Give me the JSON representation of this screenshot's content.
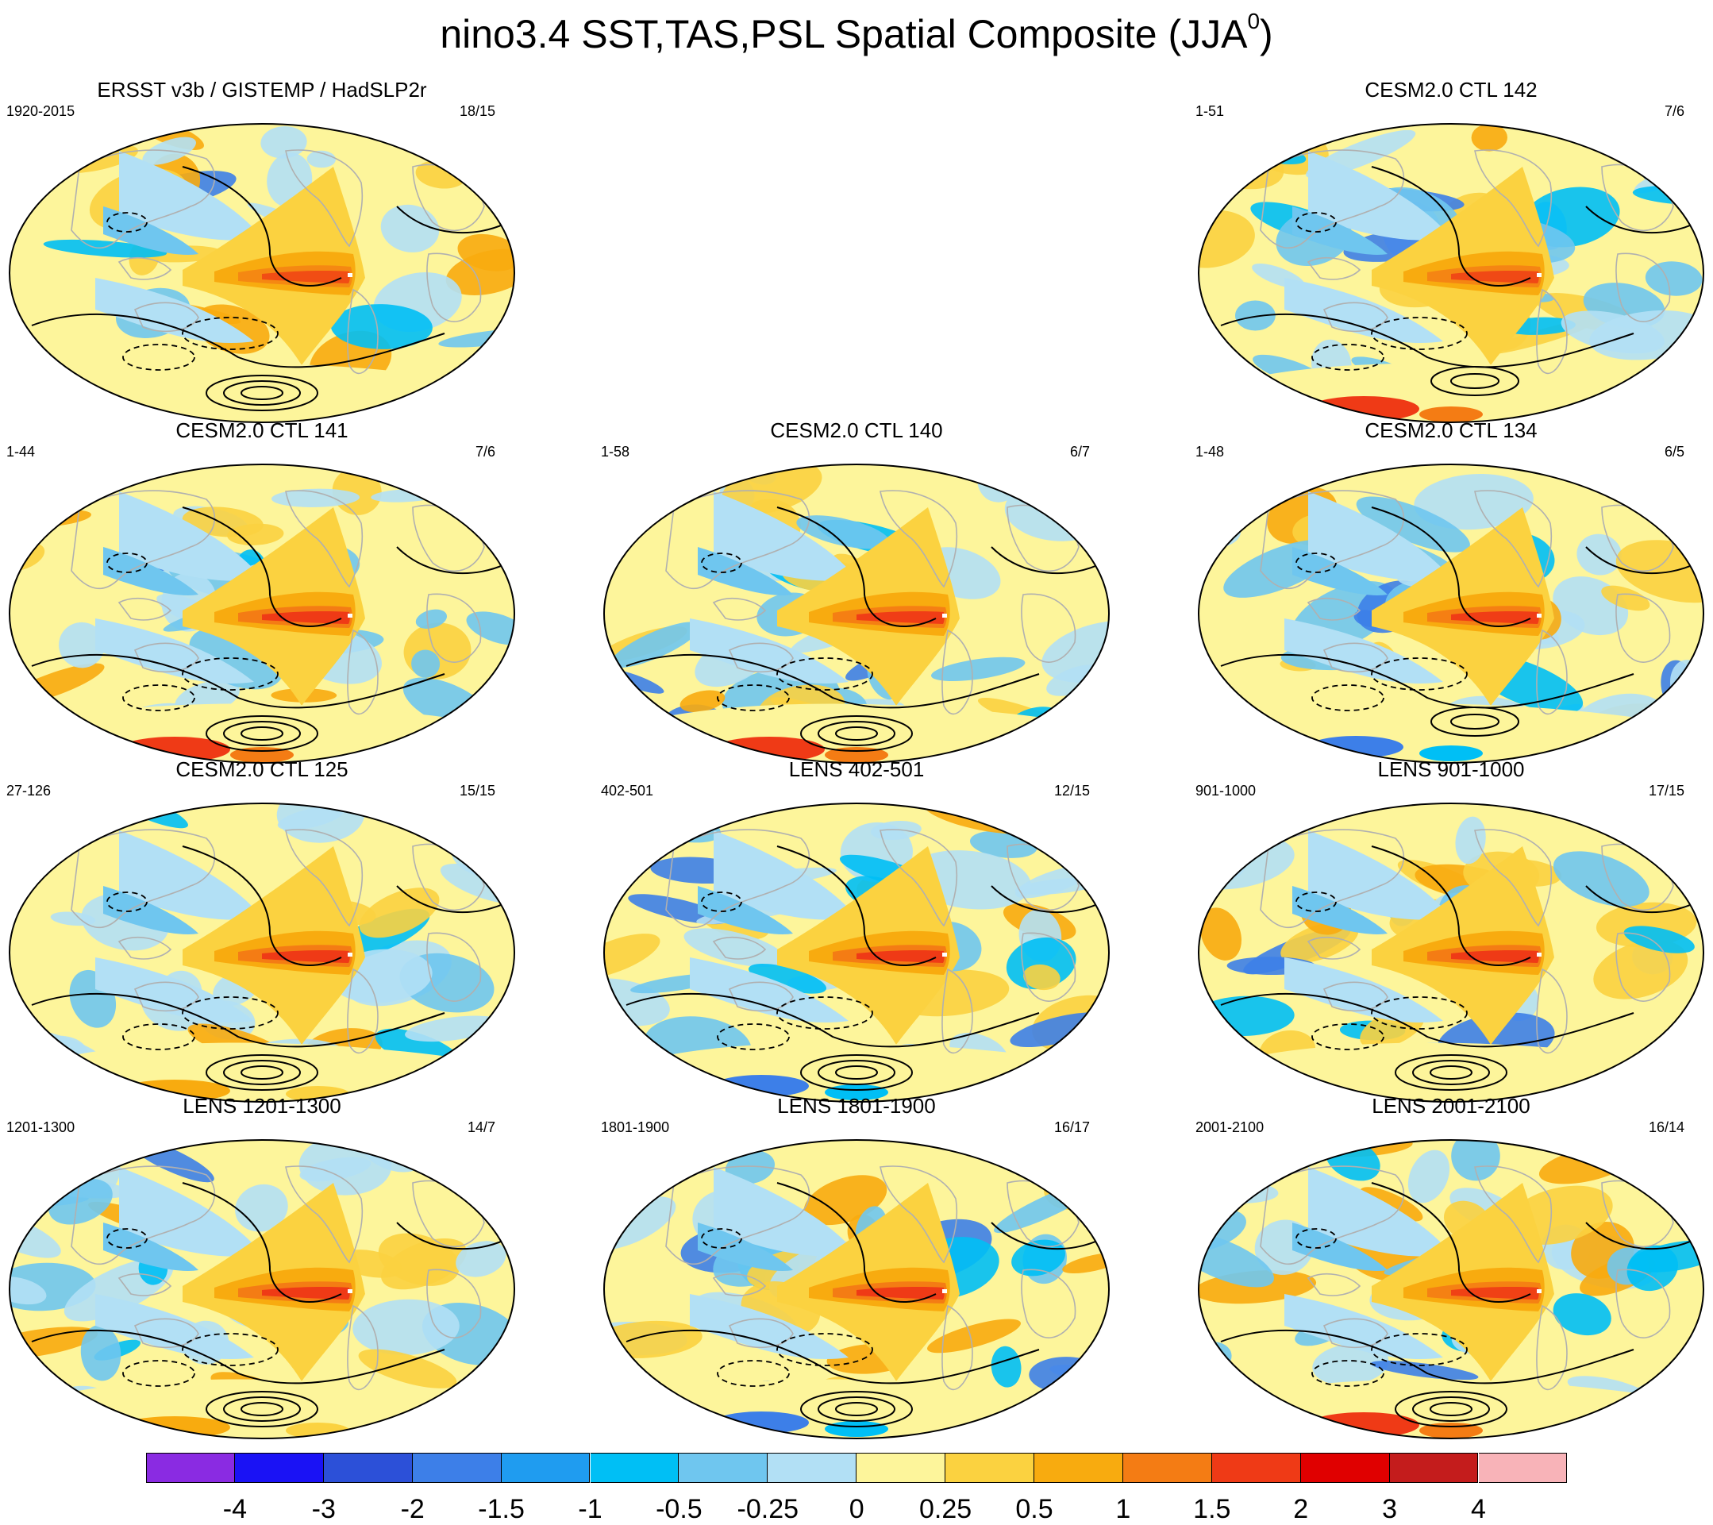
{
  "title": {
    "text": "nino3.4 SST,TAS,PSL Spatial Composite (JJA",
    "superscript": "0",
    "close": ")"
  },
  "panels": [
    {
      "title": "ERSST v3b / GISTEMP / HadSLP2r",
      "left": "1920-2015",
      "right": "18/15"
    },
    {
      "title": "CESM2.0 CTL 142",
      "left": "1-51",
      "right": "7/6"
    },
    {
      "title": "CESM2.0 CTL 141",
      "left": "1-44",
      "right": "7/6"
    },
    {
      "title": "CESM2.0 CTL 140",
      "left": "1-58",
      "right": "6/7"
    },
    {
      "title": "CESM2.0 CTL 134",
      "left": "1-48",
      "right": "6/5"
    },
    {
      "title": "CESM2.0 CTL 125",
      "left": "27-126",
      "right": "15/15"
    },
    {
      "title": "LENS 402-501",
      "left": "402-501",
      "right": "12/15"
    },
    {
      "title": "LENS 901-1000",
      "left": "901-1000",
      "right": "17/15"
    },
    {
      "title": "LENS 1201-1300",
      "left": "1201-1300",
      "right": "14/7"
    },
    {
      "title": "LENS 1801-1900",
      "left": "1801-1900",
      "right": "16/17"
    },
    {
      "title": "LENS 2001-2100",
      "left": "2001-2100",
      "right": "16/14"
    }
  ],
  "colorbar": {
    "labels": [
      "-4",
      "-3",
      "-2",
      "-1.5",
      "-1",
      "-0.5",
      "-0.25",
      "0",
      "0.25",
      "0.5",
      "1",
      "1.5",
      "2",
      "3",
      "4"
    ],
    "colors": [
      "#8a2be2",
      "#1a12f5",
      "#2c50d8",
      "#3d7fe8",
      "#1f9cf0",
      "#00bff5",
      "#6fc6ef",
      "#b2e0f5",
      "#fdf59b",
      "#fbd240",
      "#f8ab0f",
      "#f47c14",
      "#ef3a16",
      "#e00000",
      "#c41c1c",
      "#f8b3b8"
    ]
  },
  "map_style": {
    "ocean_base": "#fdf59b",
    "coast_color": "#b0b0b0",
    "contour_color": "#000000"
  }
}
